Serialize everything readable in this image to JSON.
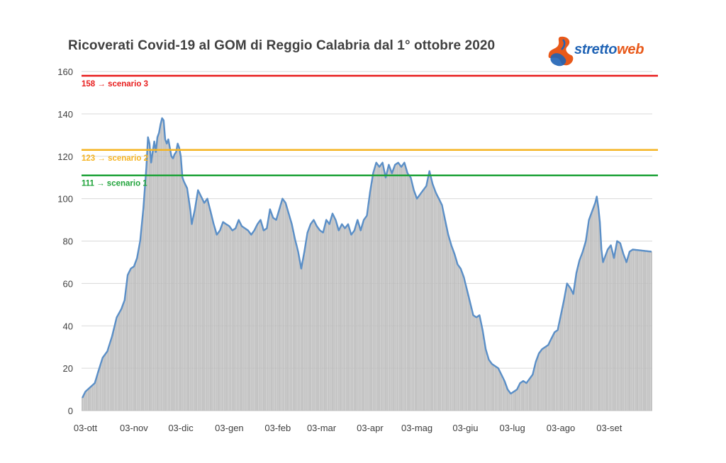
{
  "chart_data": {
    "type": "bar",
    "title": "Ricoverati Covid-19 al GOM di Reggio Calabria dal 1° ottobre 2020",
    "xlabel": "",
    "ylabel": "",
    "ylim": [
      0,
      160
    ],
    "yticks": [
      "0",
      "20",
      "40",
      "60",
      "80",
      "100",
      "120",
      "140",
      "160"
    ],
    "grid": true,
    "x_tick_labels": [
      "03-ott",
      "03-nov",
      "03-dic",
      "03-gen",
      "03-feb",
      "03-mar",
      "03-apr",
      "03-mag",
      "03-giu",
      "03-lug",
      "03-ago",
      "03-set"
    ],
    "x_tick_days": [
      2,
      33,
      63,
      94,
      125,
      153,
      184,
      214,
      245,
      275,
      306,
      337
    ],
    "days_total": 365,
    "bar_color": "#c8c8c8",
    "line_color": "#5b8fc7",
    "series_keypoints": [
      [
        0,
        6
      ],
      [
        2,
        9
      ],
      [
        5,
        11
      ],
      [
        8,
        13
      ],
      [
        10,
        18
      ],
      [
        13,
        25
      ],
      [
        16,
        28
      ],
      [
        19,
        35
      ],
      [
        22,
        44
      ],
      [
        25,
        48
      ],
      [
        27,
        52
      ],
      [
        29,
        64
      ],
      [
        31,
        67
      ],
      [
        33,
        68
      ],
      [
        35,
        72
      ],
      [
        37,
        80
      ],
      [
        39,
        95
      ],
      [
        41,
        115
      ],
      [
        42,
        129
      ],
      [
        43,
        126
      ],
      [
        44,
        117
      ],
      [
        45,
        122
      ],
      [
        46,
        127
      ],
      [
        47,
        122
      ],
      [
        48,
        129
      ],
      [
        49,
        131
      ],
      [
        50,
        135
      ],
      [
        51,
        138
      ],
      [
        52,
        137
      ],
      [
        53,
        128
      ],
      [
        54,
        126
      ],
      [
        55,
        128
      ],
      [
        56,
        124
      ],
      [
        57,
        120
      ],
      [
        58,
        119
      ],
      [
        59,
        121
      ],
      [
        60,
        122
      ],
      [
        61,
        126
      ],
      [
        62,
        124
      ],
      [
        63,
        120
      ],
      [
        64,
        110
      ],
      [
        65,
        108
      ],
      [
        67,
        105
      ],
      [
        69,
        95
      ],
      [
        70,
        88
      ],
      [
        72,
        95
      ],
      [
        74,
        104
      ],
      [
        76,
        101
      ],
      [
        78,
        98
      ],
      [
        80,
        100
      ],
      [
        82,
        94
      ],
      [
        84,
        88
      ],
      [
        86,
        83
      ],
      [
        88,
        85
      ],
      [
        90,
        89
      ],
      [
        92,
        88
      ],
      [
        94,
        87
      ],
      [
        96,
        85
      ],
      [
        98,
        86
      ],
      [
        100,
        90
      ],
      [
        102,
        87
      ],
      [
        104,
        86
      ],
      [
        106,
        85
      ],
      [
        108,
        83
      ],
      [
        110,
        85
      ],
      [
        112,
        88
      ],
      [
        114,
        90
      ],
      [
        116,
        85
      ],
      [
        118,
        86
      ],
      [
        120,
        95
      ],
      [
        122,
        91
      ],
      [
        124,
        90
      ],
      [
        126,
        95
      ],
      [
        128,
        100
      ],
      [
        130,
        98
      ],
      [
        132,
        93
      ],
      [
        134,
        88
      ],
      [
        136,
        81
      ],
      [
        138,
        75
      ],
      [
        140,
        67
      ],
      [
        142,
        75
      ],
      [
        144,
        84
      ],
      [
        146,
        88
      ],
      [
        148,
        90
      ],
      [
        150,
        87
      ],
      [
        152,
        85
      ],
      [
        154,
        84
      ],
      [
        156,
        90
      ],
      [
        158,
        88
      ],
      [
        160,
        93
      ],
      [
        162,
        90
      ],
      [
        164,
        85
      ],
      [
        166,
        88
      ],
      [
        168,
        86
      ],
      [
        170,
        88
      ],
      [
        172,
        83
      ],
      [
        174,
        85
      ],
      [
        176,
        90
      ],
      [
        178,
        85
      ],
      [
        180,
        90
      ],
      [
        182,
        92
      ],
      [
        184,
        103
      ],
      [
        186,
        112
      ],
      [
        188,
        117
      ],
      [
        190,
        115
      ],
      [
        192,
        117
      ],
      [
        194,
        110
      ],
      [
        196,
        116
      ],
      [
        198,
        112
      ],
      [
        200,
        116
      ],
      [
        202,
        117
      ],
      [
        204,
        115
      ],
      [
        206,
        117
      ],
      [
        208,
        112
      ],
      [
        210,
        110
      ],
      [
        212,
        104
      ],
      [
        214,
        100
      ],
      [
        216,
        102
      ],
      [
        218,
        104
      ],
      [
        220,
        106
      ],
      [
        222,
        113
      ],
      [
        224,
        107
      ],
      [
        226,
        103
      ],
      [
        228,
        100
      ],
      [
        230,
        97
      ],
      [
        232,
        90
      ],
      [
        234,
        83
      ],
      [
        236,
        78
      ],
      [
        238,
        74
      ],
      [
        240,
        69
      ],
      [
        242,
        67
      ],
      [
        244,
        63
      ],
      [
        246,
        57
      ],
      [
        248,
        51
      ],
      [
        250,
        45
      ],
      [
        252,
        44
      ],
      [
        254,
        45
      ],
      [
        256,
        38
      ],
      [
        258,
        29
      ],
      [
        260,
        24
      ],
      [
        262,
        22
      ],
      [
        264,
        21
      ],
      [
        266,
        20
      ],
      [
        268,
        17
      ],
      [
        270,
        14
      ],
      [
        272,
        10
      ],
      [
        274,
        8
      ],
      [
        276,
        9
      ],
      [
        278,
        10
      ],
      [
        280,
        13
      ],
      [
        282,
        14
      ],
      [
        284,
        13
      ],
      [
        286,
        15
      ],
      [
        288,
        17
      ],
      [
        290,
        23
      ],
      [
        292,
        27
      ],
      [
        294,
        29
      ],
      [
        296,
        30
      ],
      [
        298,
        31
      ],
      [
        300,
        34
      ],
      [
        302,
        37
      ],
      [
        304,
        38
      ],
      [
        306,
        45
      ],
      [
        308,
        52
      ],
      [
        310,
        60
      ],
      [
        312,
        58
      ],
      [
        314,
        55
      ],
      [
        316,
        65
      ],
      [
        318,
        71
      ],
      [
        320,
        75
      ],
      [
        322,
        80
      ],
      [
        324,
        90
      ],
      [
        326,
        94
      ],
      [
        328,
        98
      ],
      [
        329,
        101
      ],
      [
        330,
        96
      ],
      [
        331,
        89
      ],
      [
        332,
        76
      ],
      [
        333,
        70
      ],
      [
        334,
        72
      ],
      [
        336,
        76
      ],
      [
        338,
        78
      ],
      [
        340,
        72
      ],
      [
        342,
        80
      ],
      [
        344,
        79
      ],
      [
        346,
        74
      ],
      [
        348,
        70
      ],
      [
        350,
        75
      ],
      [
        352,
        76
      ],
      [
        364,
        75
      ]
    ],
    "reference_lines": [
      {
        "value": 158,
        "label": "158 → scenario 3",
        "color": "#e81c1c"
      },
      {
        "value": 123,
        "label": "123 → scenario 2",
        "color": "#f5b320"
      },
      {
        "value": 111,
        "label": "111 → scenario 1",
        "color": "#1fa33a"
      }
    ]
  },
  "logo": {
    "text_part1": "stretto",
    "text_part2": "web"
  }
}
